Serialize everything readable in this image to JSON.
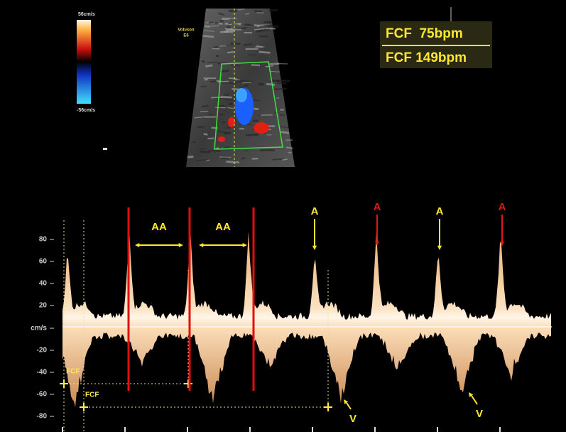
{
  "color_bar": {
    "max_label": "56cm/s",
    "min_label": "-56cm/s"
  },
  "probe": {
    "brand": "Voluson",
    "model": "E6"
  },
  "heart_rate": {
    "rows": [
      "FCF  75bpm",
      "FCF 149bpm"
    ]
  },
  "doppler": {
    "axis_labels": [
      "80",
      "60",
      "40",
      "20",
      "cm/s",
      "-20",
      "-40",
      "-60",
      "-80"
    ],
    "interval_labels": [
      "AA",
      "AA"
    ],
    "atrial_labels": [
      "A",
      "A",
      "A",
      "A"
    ],
    "ventricular_labels": [
      "V",
      "V"
    ],
    "caliper_labels": [
      "FCF",
      "FCF"
    ]
  }
}
